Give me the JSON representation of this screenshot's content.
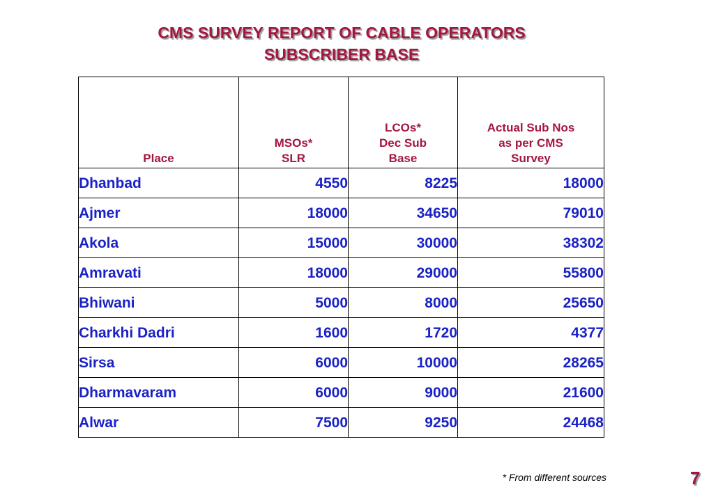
{
  "title": {
    "line1": "CMS SURVEY REPORT OF CABLE OPERATORS",
    "line2": "SUBSCRIBER BASE"
  },
  "table": {
    "headers": [
      [
        "Place"
      ],
      [
        "MSOs*",
        "SLR"
      ],
      [
        "LCOs*",
        "Dec Sub",
        "Base"
      ],
      [
        "Actual Sub Nos",
        "as per CMS",
        "Survey"
      ]
    ],
    "rows": [
      [
        "Dhanbad",
        "4550",
        "8225",
        "18000"
      ],
      [
        "Ajmer",
        "18000",
        "34650",
        "79010"
      ],
      [
        "Akola",
        "15000",
        "30000",
        "38302"
      ],
      [
        "Amravati",
        "18000",
        "29000",
        "55800"
      ],
      [
        "Bhiwani",
        "5000",
        "8000",
        "25650"
      ],
      [
        "Charkhi Dadri",
        "1600",
        "1720",
        "4377"
      ],
      [
        "Sirsa",
        "6000",
        "10000",
        "28265"
      ],
      [
        "Dharmavaram",
        "6000",
        "9000",
        "21600"
      ],
      [
        "Alwar",
        "7500",
        "9250",
        "24468"
      ]
    ]
  },
  "footnote": "* From different sources",
  "page_number": "7",
  "colors": {
    "heading": "#a3163f",
    "cell_text": "#1a22c7",
    "border": "#000000"
  }
}
